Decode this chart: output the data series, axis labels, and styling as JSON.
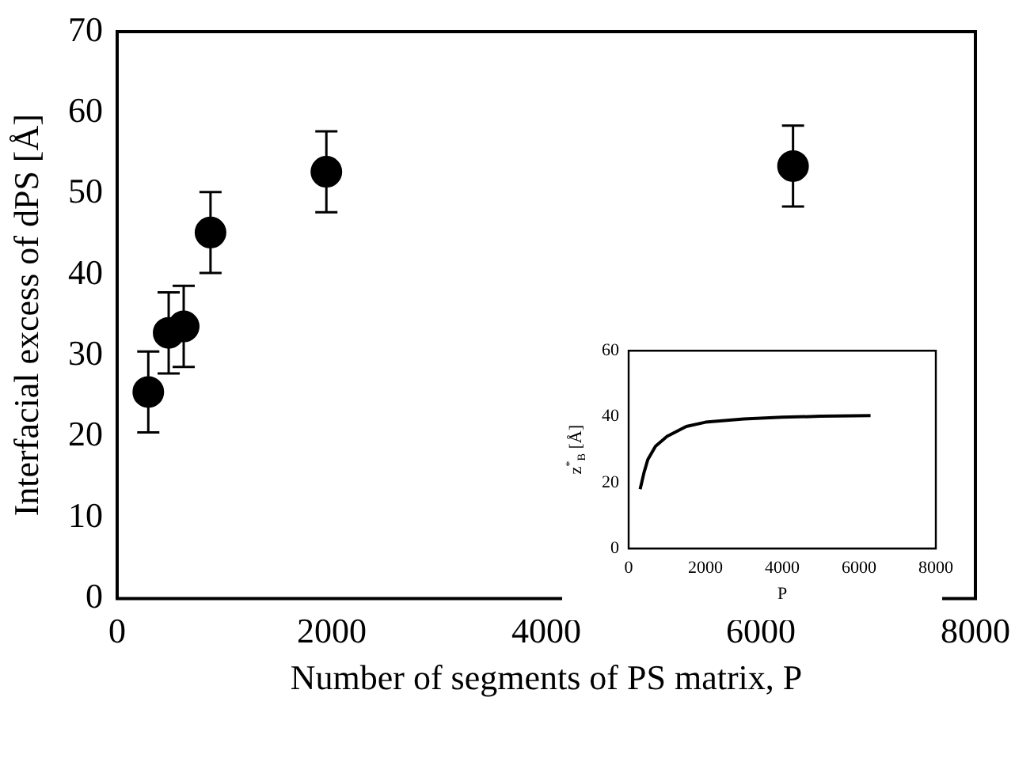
{
  "chart_data": [
    {
      "type": "scatter",
      "xlabel": "Number of segments of PS matrix, P",
      "ylabel": "Interfacial excess of dPS [Å]",
      "x": [
        290,
        480,
        620,
        870,
        1950,
        6300
      ],
      "series": [
        {
          "color": "#000000",
          "values": [
            25.5,
            32.8,
            33.6,
            45.2,
            52.7,
            53.4
          ],
          "errors": [
            5,
            5,
            5,
            5,
            5,
            5
          ]
        }
      ],
      "xlim": [
        0,
        8000
      ],
      "xticks": [
        0,
        2000,
        4000,
        6000,
        8000
      ],
      "ylim": [
        0,
        70
      ],
      "yticks": [
        0,
        10,
        20,
        30,
        40,
        50,
        60,
        70
      ],
      "grid": false,
      "legend": false,
      "marker": "circle"
    },
    {
      "type": "line",
      "xlabel": "P",
      "ylabel": "z$^{*}$$_{B}$ [Å]",
      "x": [
        300,
        400,
        500,
        700,
        1000,
        1500,
        2000,
        3000,
        4000,
        5000,
        6300
      ],
      "series": [
        {
          "color": "#000000",
          "values": [
            18,
            23,
            27,
            31,
            34,
            37,
            38.3,
            39.3,
            39.8,
            40.1,
            40.3
          ]
        }
      ],
      "xlim": [
        0,
        8000
      ],
      "xticks": [
        0,
        2000,
        4000,
        6000,
        8000
      ],
      "ylim": [
        0,
        60
      ],
      "yticks": [
        0,
        20,
        40,
        60
      ],
      "grid": false,
      "legend": false,
      "marker": "none",
      "line_style": "solid"
    }
  ]
}
